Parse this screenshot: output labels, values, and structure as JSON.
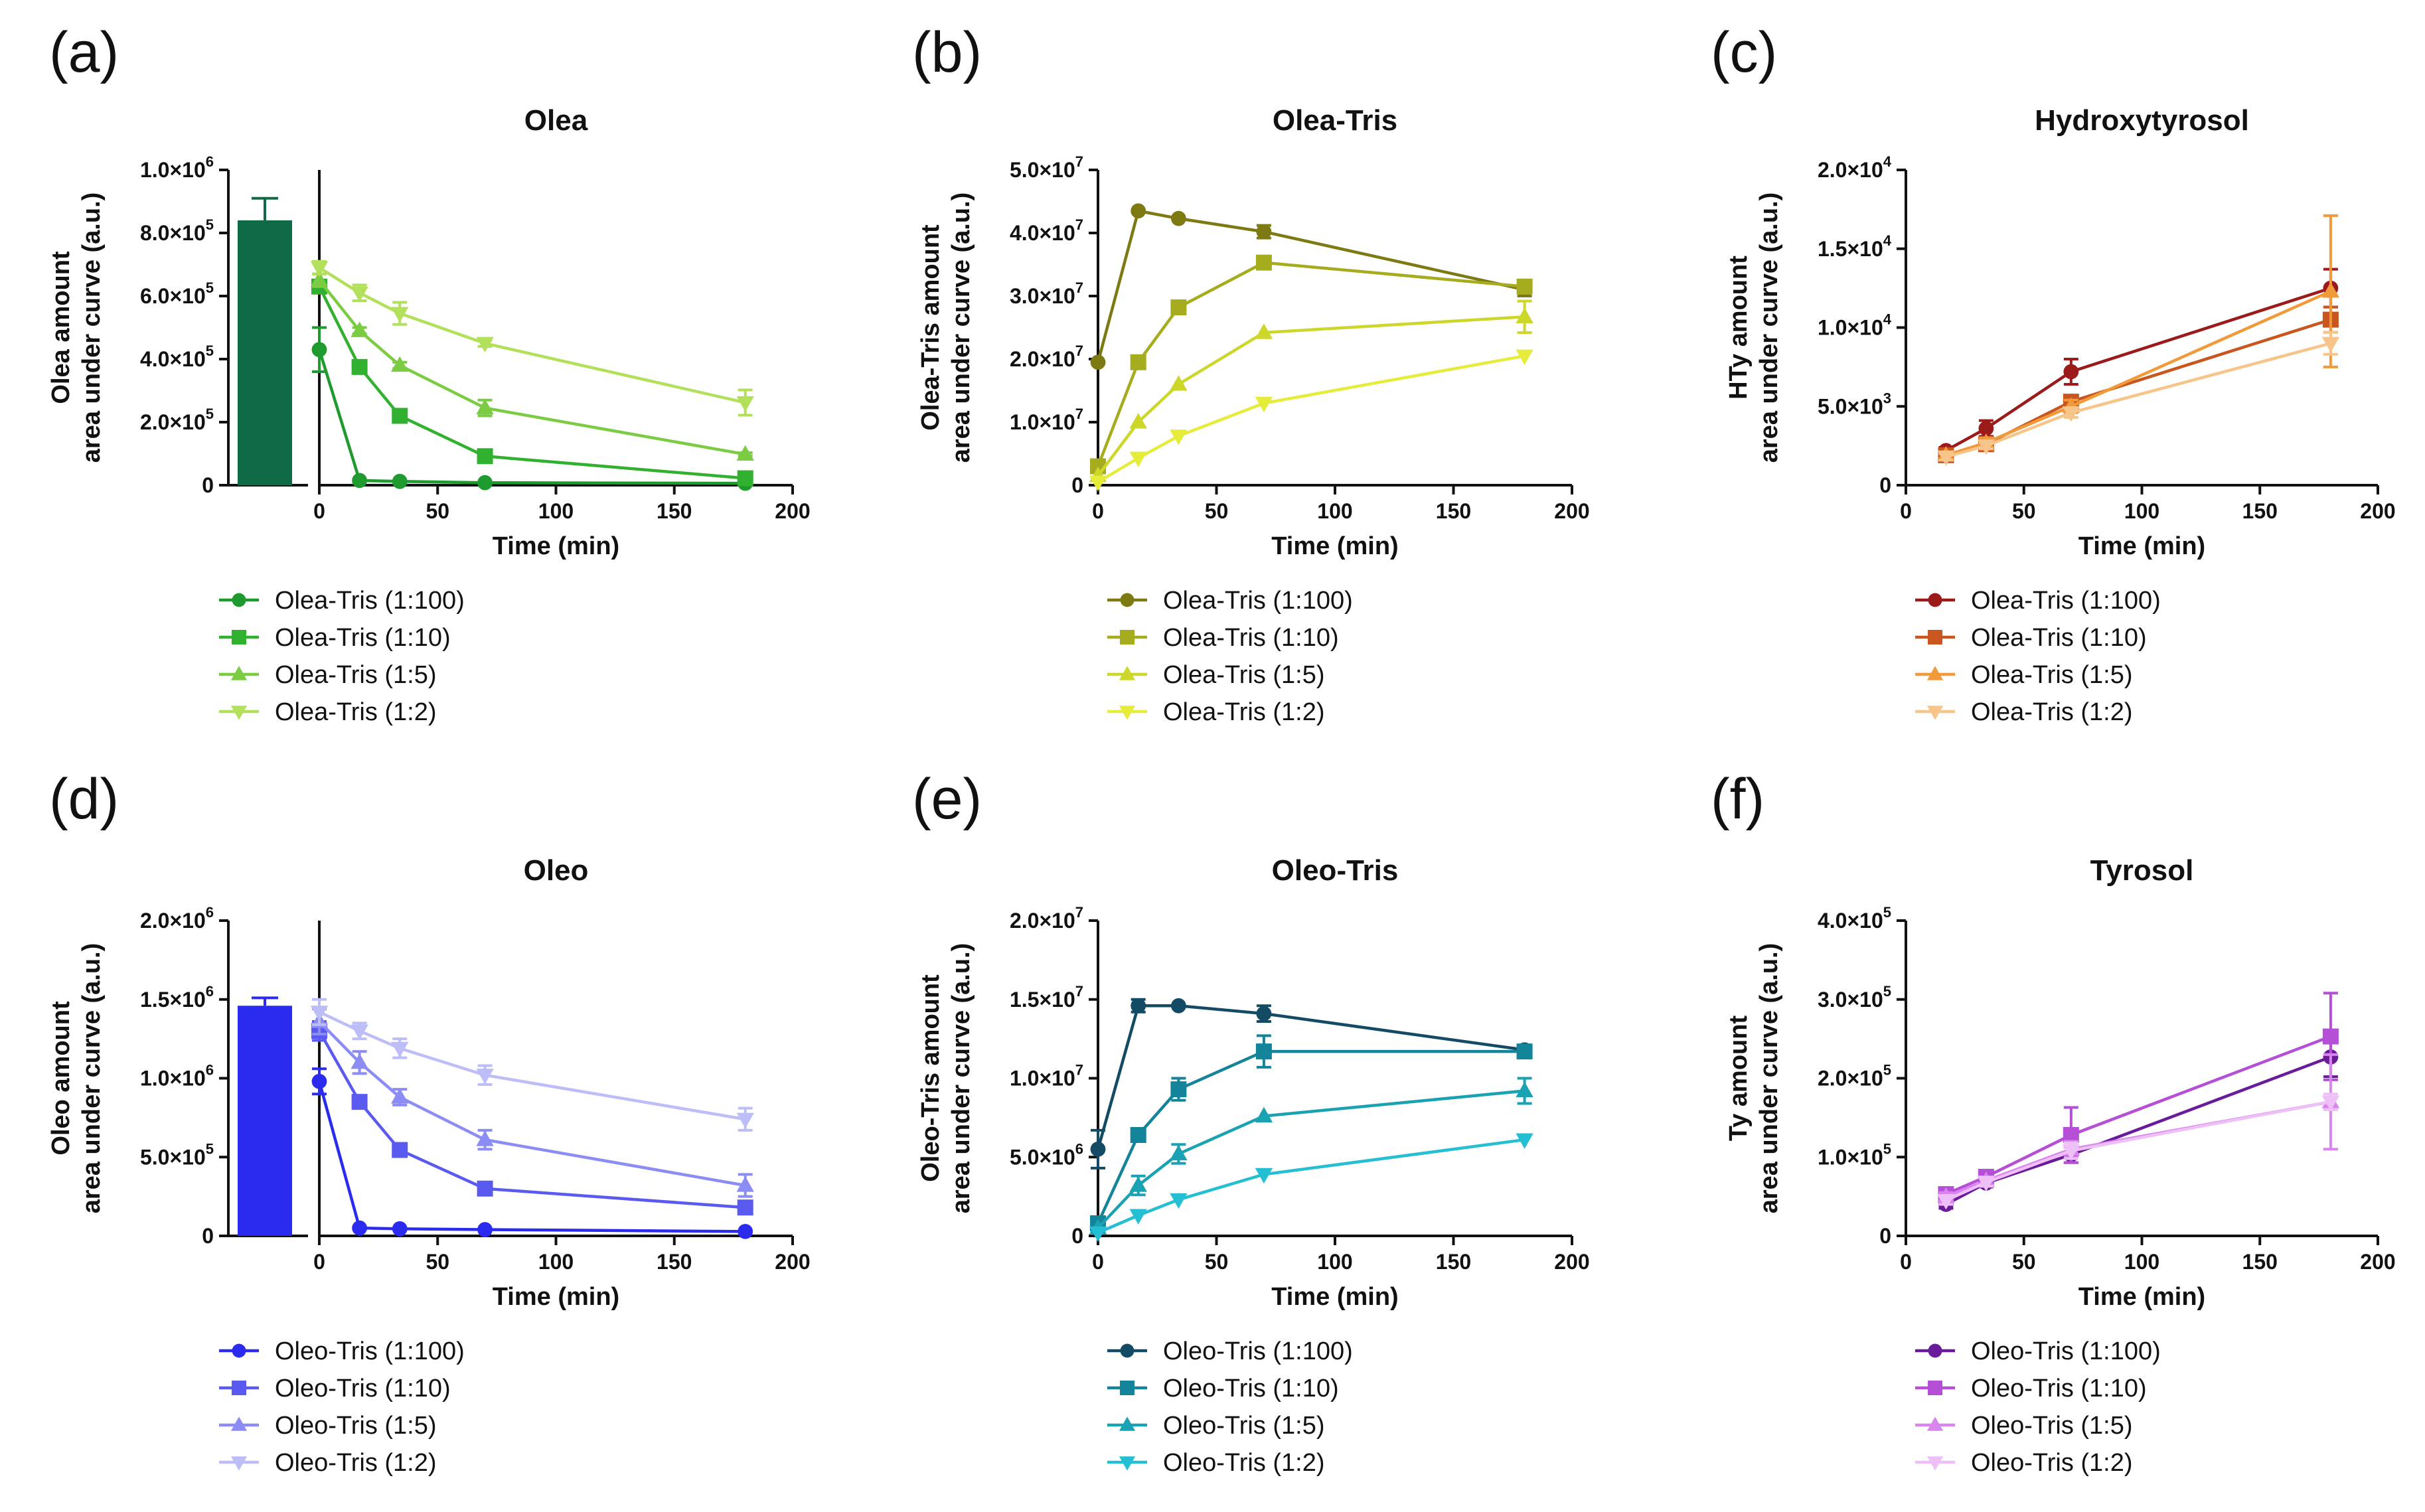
{
  "figure": {
    "panel_labels": [
      "(a)",
      "(b)",
      "(c)",
      "(d)",
      "(e)",
      "(f)"
    ]
  },
  "chart_data": [
    {
      "id": "a",
      "type": "line",
      "title": "Olea",
      "xlabel": "Time (min)",
      "ylabel": [
        "Olea amount",
        "area under curve (a.u.)"
      ],
      "xlim": [
        0,
        200
      ],
      "xticks": [
        "0",
        "50",
        "100",
        "150",
        "200"
      ],
      "ylim": [
        0,
        1000000
      ],
      "yticks": [
        {
          "v": 0,
          "m": "0"
        },
        {
          "v": 200000,
          "m": "2.0×10",
          "e": "5"
        },
        {
          "v": 400000,
          "m": "4.0×10",
          "e": "5"
        },
        {
          "v": 600000,
          "m": "6.0×10",
          "e": "5"
        },
        {
          "v": 800000,
          "m": "8.0×10",
          "e": "5"
        },
        {
          "v": 1000000,
          "m": "1.0×10",
          "e": "6"
        }
      ],
      "bar": {
        "value": 840000,
        "error": 70000,
        "color": "#0f6b45"
      },
      "x": [
        0,
        17,
        34,
        70,
        180
      ],
      "series": [
        {
          "name": "Olea-Tris (1:100)",
          "marker": "circle",
          "color": "#1e9a2e",
          "values": [
            430000,
            15000,
            12000,
            8000,
            6000
          ],
          "errors": [
            70000,
            0,
            0,
            0,
            0
          ]
        },
        {
          "name": "Olea-Tris (1:10)",
          "marker": "square",
          "color": "#32b02f",
          "values": [
            630000,
            375000,
            220000,
            92000,
            22000
          ],
          "errors": [
            20000,
            10000,
            10000,
            10000,
            5000
          ]
        },
        {
          "name": "Olea-Tris (1:5)",
          "marker": "triangle-up",
          "color": "#7ccc43",
          "values": [
            650000,
            490000,
            380000,
            245000,
            98000
          ],
          "errors": [
            20000,
            10000,
            10000,
            25000,
            5000
          ]
        },
        {
          "name": "Olea-Tris (1:2)",
          "marker": "triangle-down",
          "color": "#b3e05a",
          "values": [
            690000,
            610000,
            545000,
            450000,
            262000
          ],
          "errors": [
            20000,
            25000,
            35000,
            10000,
            40000
          ]
        }
      ]
    },
    {
      "id": "b",
      "type": "line",
      "title": "Olea-Tris",
      "xlabel": "Time (min)",
      "ylabel": [
        "Olea-Tris amount",
        "area under curve (a.u.)"
      ],
      "xlim": [
        0,
        200
      ],
      "xticks": [
        "0",
        "50",
        "100",
        "150",
        "200"
      ],
      "ylim": [
        0,
        50000000
      ],
      "yticks": [
        {
          "v": 0,
          "m": "0"
        },
        {
          "v": 10000000,
          "m": "1.0×10",
          "e": "7"
        },
        {
          "v": 20000000,
          "m": "2.0×10",
          "e": "7"
        },
        {
          "v": 30000000,
          "m": "3.0×10",
          "e": "7"
        },
        {
          "v": 40000000,
          "m": "4.0×10",
          "e": "7"
        },
        {
          "v": 50000000,
          "m": "5.0×10",
          "e": "7"
        }
      ],
      "x": [
        0,
        17,
        34,
        70,
        180
      ],
      "series": [
        {
          "name": "Olea-Tris (1:100)",
          "marker": "circle",
          "color": "#7d7a14",
          "values": [
            19500000,
            43500000,
            42300000,
            40200000,
            31000000
          ],
          "errors": [
            0,
            0,
            0,
            1000000,
            1000000
          ]
        },
        {
          "name": "Olea-Tris (1:10)",
          "marker": "square",
          "color": "#a5ad1e",
          "values": [
            3000000,
            19500000,
            28200000,
            35300000,
            31500000
          ],
          "errors": [
            0,
            0,
            0,
            0,
            1000000
          ]
        },
        {
          "name": "Olea-Tris (1:5)",
          "marker": "triangle-up",
          "color": "#cdd72a",
          "values": [
            1500000,
            10000000,
            16000000,
            24200000,
            26700000
          ],
          "errors": [
            0,
            0,
            0,
            0,
            2500000
          ]
        },
        {
          "name": "Olea-Tris (1:2)",
          "marker": "triangle-down",
          "color": "#e6ec3a",
          "values": [
            500000,
            4300000,
            7800000,
            13000000,
            20500000
          ],
          "errors": [
            0,
            0,
            0,
            0,
            0
          ]
        }
      ]
    },
    {
      "id": "c",
      "type": "line",
      "title": "Hydroxytyrosol",
      "xlabel": "Time (min)",
      "ylabel": [
        "HTy amount",
        "area under curve (a.u.)"
      ],
      "xlim": [
        0,
        200
      ],
      "xticks": [
        "0",
        "50",
        "100",
        "150",
        "200"
      ],
      "ylim": [
        0,
        20000
      ],
      "yticks": [
        {
          "v": 0,
          "m": "0"
        },
        {
          "v": 5000,
          "m": "5.0×10",
          "e": "3"
        },
        {
          "v": 10000,
          "m": "1.0×10",
          "e": "4"
        },
        {
          "v": 15000,
          "m": "1.5×10",
          "e": "4"
        },
        {
          "v": 20000,
          "m": "2.0×10",
          "e": "4"
        }
      ],
      "x": [
        17,
        34,
        70,
        180
      ],
      "series": [
        {
          "name": "Olea-Tris (1:100)",
          "marker": "circle",
          "color": "#9b1b1b",
          "values": [
            2200,
            3600,
            7200,
            12500
          ],
          "errors": [
            200,
            500,
            800,
            1200
          ]
        },
        {
          "name": "Olea-Tris (1:10)",
          "marker": "square",
          "color": "#c9561e",
          "values": [
            1900,
            2600,
            5300,
            10500
          ],
          "errors": [
            200,
            200,
            400,
            800
          ]
        },
        {
          "name": "Olea-Tris (1:5)",
          "marker": "triangle-up",
          "color": "#f09a3a",
          "values": [
            1900,
            2700,
            5000,
            12300
          ],
          "errors": [
            200,
            300,
            400,
            4800
          ]
        },
        {
          "name": "Olea-Tris (1:2)",
          "marker": "triangle-down",
          "color": "#f7c48a",
          "values": [
            1800,
            2500,
            4600,
            9000
          ],
          "errors": [
            200,
            200,
            300,
            700
          ]
        }
      ]
    },
    {
      "id": "d",
      "type": "line",
      "title": "Oleo",
      "xlabel": "Time (min)",
      "ylabel": [
        "Oleo amount",
        "area under curve (a.u.)"
      ],
      "xlim": [
        0,
        200
      ],
      "xticks": [
        "0",
        "50",
        "100",
        "150",
        "200"
      ],
      "ylim": [
        0,
        2000000
      ],
      "yticks": [
        {
          "v": 0,
          "m": "0"
        },
        {
          "v": 500000,
          "m": "5.0×10",
          "e": "5"
        },
        {
          "v": 1000000,
          "m": "1.0×10",
          "e": "6"
        },
        {
          "v": 1500000,
          "m": "1.5×10",
          "e": "6"
        },
        {
          "v": 2000000,
          "m": "2.0×10",
          "e": "6"
        }
      ],
      "bar": {
        "value": 1460000,
        "error": 50000,
        "color": "#2b2bf0"
      },
      "x": [
        0,
        17,
        34,
        70,
        180
      ],
      "series": [
        {
          "name": "Oleo-Tris (1:100)",
          "marker": "circle",
          "color": "#2b2bf0",
          "values": [
            980000,
            50000,
            45000,
            40000,
            28000
          ],
          "errors": [
            80000,
            0,
            0,
            0,
            0
          ]
        },
        {
          "name": "Oleo-Tris (1:10)",
          "marker": "square",
          "color": "#5a5af0",
          "values": [
            1300000,
            850000,
            545000,
            300000,
            180000
          ],
          "errors": [
            60000,
            30000,
            20000,
            20000,
            40000
          ]
        },
        {
          "name": "Oleo-Tris (1:5)",
          "marker": "triangle-up",
          "color": "#8c8cf5",
          "values": [
            1360000,
            1100000,
            880000,
            610000,
            320000
          ],
          "errors": [
            80000,
            70000,
            50000,
            60000,
            70000
          ]
        },
        {
          "name": "Oleo-Tris (1:2)",
          "marker": "triangle-down",
          "color": "#bdbdf8",
          "values": [
            1420000,
            1300000,
            1190000,
            1020000,
            740000
          ],
          "errors": [
            80000,
            50000,
            60000,
            60000,
            70000
          ]
        }
      ]
    },
    {
      "id": "e",
      "type": "line",
      "title": "Oleo-Tris",
      "xlabel": "Time (min)",
      "ylabel": [
        "Oleo-Tris amount",
        "area under curve (a.u.)"
      ],
      "xlim": [
        0,
        200
      ],
      "xticks": [
        "0",
        "50",
        "100",
        "150",
        "200"
      ],
      "ylim": [
        0,
        20000000
      ],
      "yticks": [
        {
          "v": 0,
          "m": "0"
        },
        {
          "v": 5000000,
          "m": "5.0×10",
          "e": "6"
        },
        {
          "v": 10000000,
          "m": "1.0×10",
          "e": "7"
        },
        {
          "v": 15000000,
          "m": "1.5×10",
          "e": "7"
        },
        {
          "v": 20000000,
          "m": "2.0×10",
          "e": "7"
        }
      ],
      "x": [
        0,
        17,
        34,
        70,
        180
      ],
      "series": [
        {
          "name": "Oleo-Tris (1:100)",
          "marker": "circle",
          "color": "#124b63",
          "values": [
            5500000,
            14600000,
            14600000,
            14100000,
            11800000
          ],
          "errors": [
            1200000,
            400000,
            0,
            500000,
            0
          ]
        },
        {
          "name": "Oleo-Tris (1:10)",
          "marker": "square",
          "color": "#13849a",
          "values": [
            800000,
            6400000,
            9300000,
            11700000,
            11700000
          ],
          "errors": [
            0,
            400000,
            700000,
            1000000,
            0
          ]
        },
        {
          "name": "Oleo-Tris (1:5)",
          "marker": "triangle-up",
          "color": "#1aa2b3",
          "values": [
            500000,
            3200000,
            5200000,
            7600000,
            9200000
          ],
          "errors": [
            0,
            600000,
            600000,
            0,
            800000
          ]
        },
        {
          "name": "Oleo-Tris (1:2)",
          "marker": "triangle-down",
          "color": "#25bfd4",
          "values": [
            200000,
            1300000,
            2300000,
            3900000,
            6100000
          ],
          "errors": [
            0,
            0,
            0,
            0,
            0
          ]
        }
      ]
    },
    {
      "id": "f",
      "type": "line",
      "title": "Tyrosol",
      "xlabel": "Time (min)",
      "ylabel": [
        "Ty amount",
        "area under curve (a.u.)"
      ],
      "xlim": [
        0,
        200
      ],
      "xticks": [
        "0",
        "50",
        "100",
        "150",
        "200"
      ],
      "ylim": [
        0,
        400000
      ],
      "yticks": [
        {
          "v": 0,
          "m": "0"
        },
        {
          "v": 100000,
          "m": "1.0×10",
          "e": "5"
        },
        {
          "v": 200000,
          "m": "2.0×10",
          "e": "5"
        },
        {
          "v": 300000,
          "m": "3.0×10",
          "e": "5"
        },
        {
          "v": 400000,
          "m": "4.0×10",
          "e": "5"
        }
      ],
      "x": [
        17,
        34,
        70,
        180
      ],
      "series": [
        {
          "name": "Oleo-Tris (1:100)",
          "marker": "circle",
          "color": "#6a1b9a",
          "values": [
            40000,
            67000,
            103000,
            227000
          ],
          "errors": [
            5000,
            5000,
            10000,
            25000
          ]
        },
        {
          "name": "Oleo-Tris (1:10)",
          "marker": "square",
          "color": "#b44fd6",
          "values": [
            53000,
            75000,
            128000,
            253000
          ],
          "errors": [
            5000,
            5000,
            35000,
            55000
          ]
        },
        {
          "name": "Oleo-Tris (1:5)",
          "marker": "triangle-up",
          "color": "#d886ee",
          "values": [
            50000,
            70000,
            110000,
            170000
          ],
          "errors": [
            5000,
            5000,
            10000,
            60000
          ]
        },
        {
          "name": "Oleo-Tris (1:2)",
          "marker": "triangle-down",
          "color": "#eec0f7",
          "values": [
            45000,
            68000,
            108000,
            170000
          ],
          "errors": [
            5000,
            5000,
            10000,
            10000
          ]
        }
      ]
    }
  ]
}
